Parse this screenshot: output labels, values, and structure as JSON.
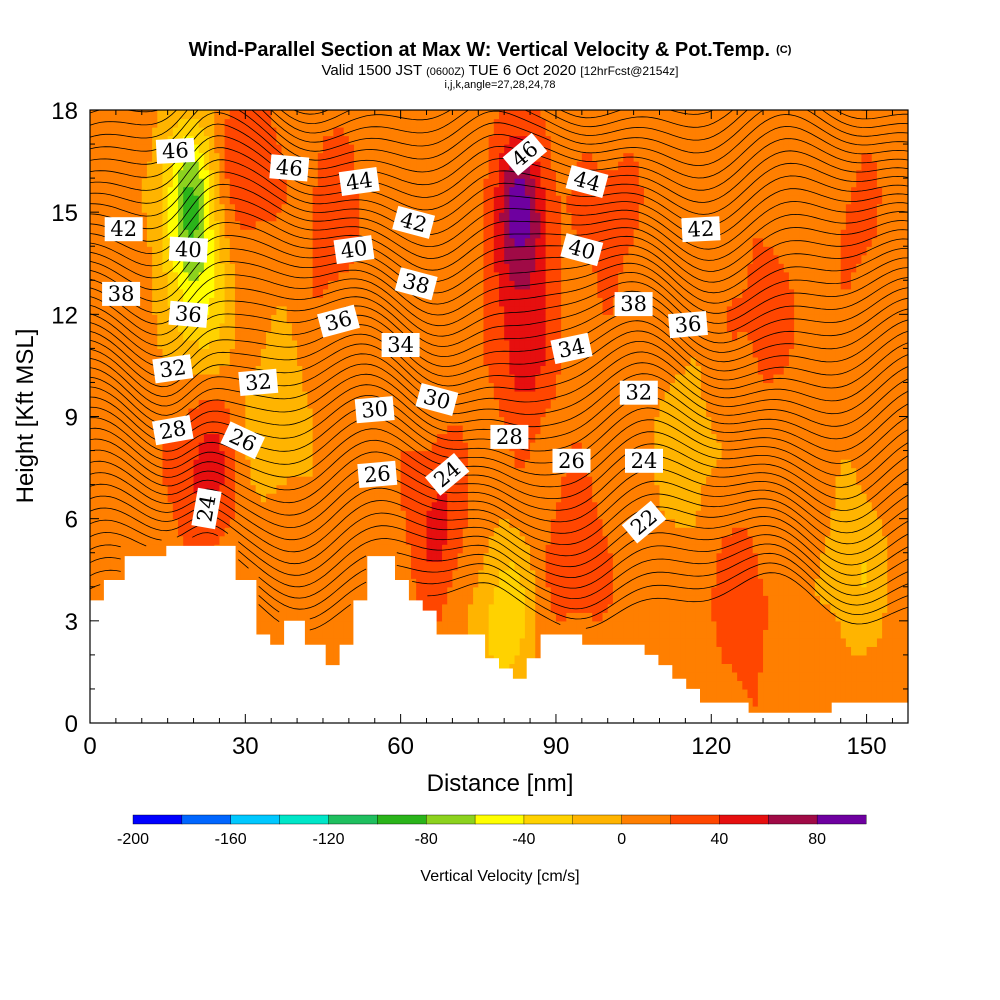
{
  "chart_data": {
    "type": "heatmap",
    "title": "Wind-Parallel Section at Max W: Vertical Velocity & Pot.Temp.",
    "title_mark": "(C)",
    "subtitle_parts": [
      "Valid 1500 JST",
      "(0600Z)",
      "TUE 6 Oct 2020",
      "[12hrFcst@2154z]"
    ],
    "subtitle2": "i,j,k,angle=27,28,24,78",
    "xlabel": "Distance [nm]",
    "ylabel": "Height [Kft MSL]",
    "xlim": [
      0,
      158
    ],
    "ylim": [
      0,
      18
    ],
    "x_ticks": [
      "0",
      "30",
      "60",
      "90",
      "120",
      "150"
    ],
    "y_ticks": [
      "0",
      "3",
      "6",
      "9",
      "12",
      "15",
      "18"
    ],
    "colorbar": {
      "label": "Vertical Velocity [cm/s]",
      "min": -200,
      "max": 100,
      "step": 20,
      "tick_labels": [
        "-200",
        "-160",
        "-120",
        "-80",
        "-40",
        "0",
        "40",
        "80"
      ],
      "colors": [
        "#0000ff",
        "#0066ff",
        "#00c8ff",
        "#00e6c8",
        "#1fbf5f",
        "#2ab41a",
        "#8cd21e",
        "#ffff00",
        "#ffd200",
        "#ffb400",
        "#ff7f00",
        "#ff4600",
        "#e60f0f",
        "#a00a46",
        "#6e00a0"
      ]
    },
    "field": {
      "variable": "vertical velocity (cm/s)",
      "base": 10,
      "features": [
        {
          "x": 19,
          "y": 15.5,
          "value": -70
        },
        {
          "x": 21,
          "y": 12.5,
          "value": -40
        },
        {
          "x": 22,
          "y": 7.5,
          "value": 50
        },
        {
          "x": 30,
          "y": 16.5,
          "value": 40
        },
        {
          "x": 47,
          "y": 15,
          "value": 35
        },
        {
          "x": 67,
          "y": 6,
          "value": 45
        },
        {
          "x": 83,
          "y": 15,
          "value": 85
        },
        {
          "x": 84,
          "y": 11,
          "value": 50
        },
        {
          "x": 94,
          "y": 5,
          "value": 35
        },
        {
          "x": 100,
          "y": 15,
          "value": 30
        },
        {
          "x": 126,
          "y": 3.5,
          "value": 35
        },
        {
          "x": 130,
          "y": 12,
          "value": 30
        },
        {
          "x": 147,
          "y": 15,
          "value": 25
        },
        {
          "x": 36,
          "y": 9,
          "value": -20
        },
        {
          "x": 80,
          "y": 3,
          "value": -35
        },
        {
          "x": 115,
          "y": 8,
          "value": -15
        },
        {
          "x": 148,
          "y": 4.5,
          "value": -20
        }
      ]
    },
    "terrain_kft": [
      3.6,
      3.6,
      4.2,
      4.2,
      4.2,
      4.9,
      4.9,
      4.9,
      4.9,
      4.9,
      4.9,
      5.2,
      5.2,
      5.2,
      5.2,
      5.2,
      5.2,
      5.2,
      5.2,
      5.2,
      5.2,
      4.2,
      4.2,
      4.2,
      2.6,
      2.6,
      2.3,
      2.3,
      3.0,
      3.0,
      3.0,
      2.3,
      2.3,
      2.3,
      1.7,
      1.7,
      2.3,
      2.3,
      3.6,
      3.6,
      4.9,
      4.9,
      4.9,
      4.9,
      4.2,
      4.2,
      3.6,
      3.6,
      3.3,
      3.3,
      2.6,
      2.6,
      2.6,
      2.6,
      2.6,
      2.6,
      2.6,
      1.9,
      1.9,
      1.6,
      1.6,
      1.3,
      1.3,
      1.9,
      1.9,
      2.6,
      2.6,
      2.6,
      2.6,
      2.6,
      2.6,
      2.3,
      2.3,
      2.3,
      2.3,
      2.3,
      2.3,
      2.3,
      2.3,
      2.3,
      2.0,
      2.0,
      1.7,
      1.7,
      1.3,
      1.3,
      1.0,
      1.0,
      0.6,
      0.6,
      0.6,
      0.6,
      0.6,
      0.6,
      0.6,
      0.3,
      0.3,
      0.3,
      0.3,
      0.3,
      0.3,
      0.3,
      0.3,
      0.3,
      0.3,
      0.3,
      0.3,
      0.6,
      0.6,
      0.6,
      0.6,
      0.6,
      0.6,
      0.6,
      0.6,
      0.6,
      0.6,
      0.6
    ],
    "contour_labels": [
      {
        "text": "46",
        "x": 16.5,
        "y": 16.8,
        "angle": -3
      },
      {
        "text": "46",
        "x": 38.5,
        "y": 16.3,
        "angle": 5
      },
      {
        "text": "44",
        "x": 52,
        "y": 15.9,
        "angle": -8
      },
      {
        "text": "46",
        "x": 84,
        "y": 16.7,
        "angle": -40
      },
      {
        "text": "44",
        "x": 96,
        "y": 15.9,
        "angle": 15
      },
      {
        "text": "42",
        "x": 6.5,
        "y": 14.5,
        "angle": 0
      },
      {
        "text": "42",
        "x": 62.5,
        "y": 14.7,
        "angle": 15
      },
      {
        "text": "42",
        "x": 118,
        "y": 14.5,
        "angle": -3
      },
      {
        "text": "40",
        "x": 19,
        "y": 13.9,
        "angle": 3
      },
      {
        "text": "40",
        "x": 51,
        "y": 13.9,
        "angle": -8
      },
      {
        "text": "40",
        "x": 95,
        "y": 13.9,
        "angle": 15
      },
      {
        "text": "38",
        "x": 6,
        "y": 12.6,
        "angle": 0
      },
      {
        "text": "38",
        "x": 63,
        "y": 12.9,
        "angle": 15
      },
      {
        "text": "38",
        "x": 105,
        "y": 12.3,
        "angle": 0
      },
      {
        "text": "36",
        "x": 19,
        "y": 12.0,
        "angle": 5
      },
      {
        "text": "36",
        "x": 48,
        "y": 11.8,
        "angle": -15
      },
      {
        "text": "36",
        "x": 115.5,
        "y": 11.7,
        "angle": -5
      },
      {
        "text": "34",
        "x": 60,
        "y": 11.1,
        "angle": 0
      },
      {
        "text": "34",
        "x": 93,
        "y": 11.0,
        "angle": -12
      },
      {
        "text": "32",
        "x": 16,
        "y": 10.4,
        "angle": -8
      },
      {
        "text": "32",
        "x": 32.5,
        "y": 10.0,
        "angle": -5
      },
      {
        "text": "32",
        "x": 106,
        "y": 9.7,
        "angle": 0
      },
      {
        "text": "30",
        "x": 55,
        "y": 9.2,
        "angle": -5
      },
      {
        "text": "30",
        "x": 67,
        "y": 9.5,
        "angle": 15
      },
      {
        "text": "28",
        "x": 16,
        "y": 8.6,
        "angle": -10
      },
      {
        "text": "28",
        "x": 81,
        "y": 8.4,
        "angle": 0
      },
      {
        "text": "26",
        "x": 29.5,
        "y": 8.3,
        "angle": 25
      },
      {
        "text": "26",
        "x": 55.5,
        "y": 7.3,
        "angle": -5
      },
      {
        "text": "26",
        "x": 93,
        "y": 7.7,
        "angle": 0
      },
      {
        "text": "24",
        "x": 69,
        "y": 7.3,
        "angle": -40
      },
      {
        "text": "24",
        "x": 107,
        "y": 7.7,
        "angle": 0
      },
      {
        "text": "24",
        "x": 22.5,
        "y": 6.3,
        "angle": -80
      },
      {
        "text": "22",
        "x": 107,
        "y": 5.9,
        "angle": -40
      }
    ]
  }
}
